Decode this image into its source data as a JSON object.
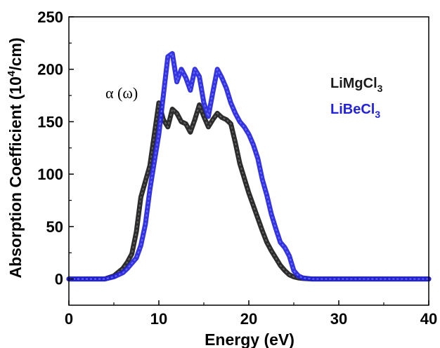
{
  "chart_data": {
    "type": "line",
    "title": "",
    "xlabel": "Energy (eV)",
    "ylabel_prefix": "Absorption Coefficient (10",
    "ylabel_sup": "4",
    "ylabel_suffix": "/cm)",
    "xlim": [
      0,
      40
    ],
    "ylim": [
      -25,
      250
    ],
    "x_ticks": [
      0,
      10,
      20,
      30,
      40
    ],
    "y_ticks": [
      0,
      50,
      100,
      150,
      200,
      250
    ],
    "x_tick_labels": [
      "0",
      "10",
      "20",
      "30",
      "40"
    ],
    "y_tick_labels": [
      "0",
      "50",
      "100",
      "150",
      "200",
      "250"
    ],
    "grid": false,
    "legend_placement": "top-right",
    "annotation": "α (ω)",
    "series": [
      {
        "name_main": "LiMgCl",
        "name_sub": "3",
        "color": "#1a1a1a",
        "x": [
          0,
          4,
          5,
          6,
          6.5,
          7,
          7.5,
          8,
          8.5,
          9,
          9.5,
          10,
          10.5,
          11,
          11.5,
          12,
          12.5,
          13,
          13.5,
          14,
          14.5,
          15,
          15.5,
          16,
          16.5,
          17,
          17.5,
          18,
          18.5,
          19,
          19.5,
          20,
          20.5,
          21,
          21.5,
          22,
          22.5,
          23,
          23.5,
          24,
          24.5,
          25,
          25.5,
          26,
          27,
          28,
          30,
          35,
          40
        ],
        "y": [
          0,
          0,
          3,
          10,
          16,
          24,
          45,
          78,
          93,
          108,
          138,
          168,
          152,
          145,
          162,
          158,
          150,
          148,
          140,
          152,
          166,
          155,
          145,
          152,
          158,
          154,
          152,
          148,
          130,
          110,
          96,
          82,
          70,
          58,
          46,
          35,
          27,
          20,
          13,
          8,
          4,
          2,
          1,
          0.5,
          0,
          0,
          0,
          0,
          0
        ]
      },
      {
        "name_main": "LiBeCl",
        "name_sub": "3",
        "color": "#2222dd",
        "x": [
          0,
          4,
          5,
          6,
          6.5,
          7,
          7.5,
          8,
          8.5,
          9,
          9.5,
          10,
          10.5,
          11,
          11.5,
          12,
          12.5,
          13,
          13.5,
          14,
          14.5,
          15,
          15.5,
          16,
          16.5,
          17,
          17.5,
          18,
          18.5,
          19,
          19.5,
          20,
          20.5,
          21,
          21.5,
          22,
          22.5,
          23,
          23.5,
          24,
          24.5,
          25,
          25.5,
          26,
          27,
          28,
          30,
          35,
          40
        ],
        "y": [
          0,
          0,
          2,
          6,
          10,
          15,
          20,
          32,
          52,
          85,
          112,
          138,
          175,
          212,
          215,
          188,
          200,
          192,
          180,
          200,
          193,
          168,
          155,
          178,
          200,
          192,
          182,
          168,
          158,
          150,
          145,
          138,
          128,
          115,
          95,
          80,
          62,
          48,
          35,
          30,
          22,
          8,
          3,
          1,
          0,
          0,
          0,
          0,
          0
        ]
      }
    ]
  }
}
